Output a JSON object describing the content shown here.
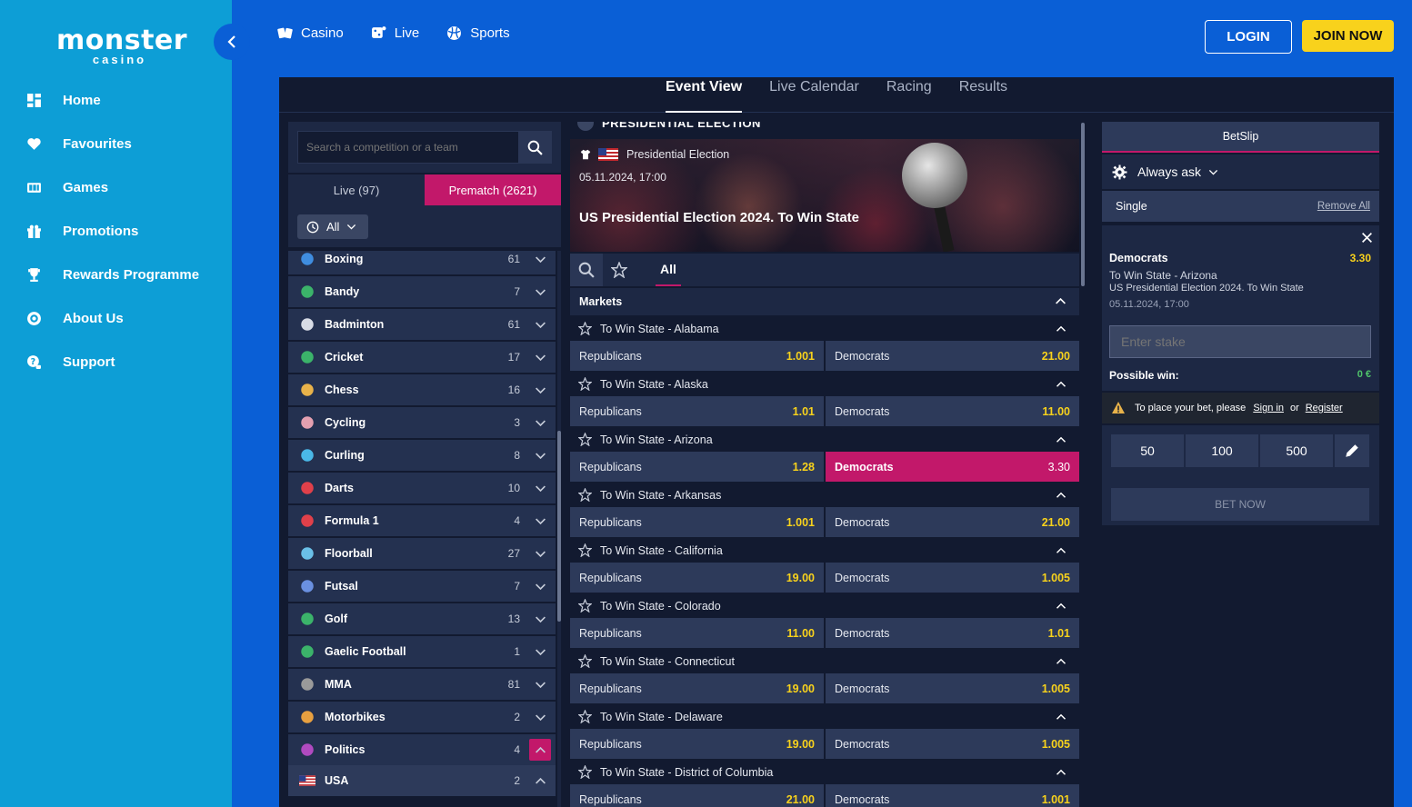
{
  "brand": {
    "logo_main": "monster",
    "logo_sub": "casino"
  },
  "sidebar": {
    "items": [
      {
        "label": "Home",
        "icon": "home-icon"
      },
      {
        "label": "Favourites",
        "icon": "heart-icon"
      },
      {
        "label": "Games",
        "icon": "games-icon"
      },
      {
        "label": "Promotions",
        "icon": "gift-icon"
      },
      {
        "label": "Rewards Programme",
        "icon": "trophy-icon"
      },
      {
        "label": "About Us",
        "icon": "info-icon"
      },
      {
        "label": "Support",
        "icon": "support-icon"
      }
    ]
  },
  "header": {
    "nav": [
      {
        "label": "Casino",
        "icon": "cards-icon"
      },
      {
        "label": "Live",
        "icon": "live-dice-icon"
      },
      {
        "label": "Sports",
        "icon": "ball-icon"
      }
    ],
    "login_label": "LOGIN",
    "join_label": "JOIN NOW"
  },
  "main_tabs": [
    {
      "label": "Event View",
      "active": true
    },
    {
      "label": "Live Calendar",
      "active": false
    },
    {
      "label": "Racing",
      "active": false
    },
    {
      "label": "Results",
      "active": false
    }
  ],
  "left_panel": {
    "search_placeholder": "Search a competition or a team",
    "tabs": [
      {
        "label": "Live (97)",
        "active": false
      },
      {
        "label": "Prematch (2621)",
        "active": true
      }
    ],
    "filter_label": "All",
    "sports": [
      {
        "name": "Boxing",
        "count": "61",
        "color": "#3f8de0"
      },
      {
        "name": "Bandy",
        "count": "7",
        "color": "#3bb36a"
      },
      {
        "name": "Badminton",
        "count": "61",
        "color": "#d8dce6"
      },
      {
        "name": "Cricket",
        "count": "17",
        "color": "#3bb36a"
      },
      {
        "name": "Chess",
        "count": "16",
        "color": "#e8b24a"
      },
      {
        "name": "Cycling",
        "count": "3",
        "color": "#e4a0b0"
      },
      {
        "name": "Curling",
        "count": "8",
        "color": "#4ab8e8"
      },
      {
        "name": "Darts",
        "count": "10",
        "color": "#e0404a"
      },
      {
        "name": "Formula 1",
        "count": "4",
        "color": "#e0404a"
      },
      {
        "name": "Floorball",
        "count": "27",
        "color": "#6ac0e8"
      },
      {
        "name": "Futsal",
        "count": "7",
        "color": "#6a90e0"
      },
      {
        "name": "Golf",
        "count": "13",
        "color": "#3bb36a"
      },
      {
        "name": "Gaelic Football",
        "count": "1",
        "color": "#3bb36a"
      },
      {
        "name": "MMA",
        "count": "81",
        "color": "#9a9a9a"
      },
      {
        "name": "Motorbikes",
        "count": "2",
        "color": "#e8a040"
      },
      {
        "name": "Politics",
        "count": "4",
        "color": "#b04ac0",
        "expanded": true
      }
    ],
    "sub_item": {
      "name": "USA",
      "count": "2"
    }
  },
  "event": {
    "header": "PRESIDENTIAL ELECTION",
    "competition": "Presidential Election",
    "datetime": "05.11.2024, 17:00",
    "title": "US Presidential Election 2024. To Win State",
    "filter_tab": "All",
    "markets_label": "Markets",
    "markets": [
      {
        "name": "To Win State - Alabama",
        "a_name": "Republicans",
        "a_odd": "1.001",
        "b_name": "Democrats",
        "b_odd": "21.00"
      },
      {
        "name": "To Win State - Alaska",
        "a_name": "Republicans",
        "a_odd": "1.01",
        "b_name": "Democrats",
        "b_odd": "11.00"
      },
      {
        "name": "To Win State - Arizona",
        "a_name": "Republicans",
        "a_odd": "1.28",
        "b_name": "Democrats",
        "b_odd": "3.30",
        "selected": "b"
      },
      {
        "name": "To Win State - Arkansas",
        "a_name": "Republicans",
        "a_odd": "1.001",
        "b_name": "Democrats",
        "b_odd": "21.00"
      },
      {
        "name": "To Win State - California",
        "a_name": "Republicans",
        "a_odd": "19.00",
        "b_name": "Democrats",
        "b_odd": "1.005"
      },
      {
        "name": "To Win State - Colorado",
        "a_name": "Republicans",
        "a_odd": "11.00",
        "b_name": "Democrats",
        "b_odd": "1.01"
      },
      {
        "name": "To Win State - Connecticut",
        "a_name": "Republicans",
        "a_odd": "19.00",
        "b_name": "Democrats",
        "b_odd": "1.005"
      },
      {
        "name": "To Win State - Delaware",
        "a_name": "Republicans",
        "a_odd": "19.00",
        "b_name": "Democrats",
        "b_odd": "1.005"
      },
      {
        "name": "To Win State - District of Columbia",
        "a_name": "Republicans",
        "a_odd": "21.00",
        "b_name": "Democrats",
        "b_odd": "1.001"
      }
    ]
  },
  "betslip": {
    "title": "BetSlip",
    "odds_setting": "Always ask",
    "type": "Single",
    "remove_all": "Remove All",
    "selection": "Democrats",
    "odd": "3.30",
    "market": "To Win State - Arizona",
    "event": "US Presidential Election 2024. To Win State",
    "datetime": "05.11.2024, 17:00",
    "stake_placeholder": "Enter stake",
    "possible_win_label": "Possible win:",
    "possible_win_value": "0 €",
    "warn_text": "To place your bet, please",
    "signin": "Sign in",
    "or": "or",
    "register": "Register",
    "quick_stakes": [
      "50",
      "100",
      "500"
    ],
    "bet_now": "BET NOW"
  },
  "colors": {
    "accent": "#c2186a",
    "odds": "#f8d21c",
    "sidebar": "#0d9ed6",
    "header": "#0a5fd6"
  }
}
